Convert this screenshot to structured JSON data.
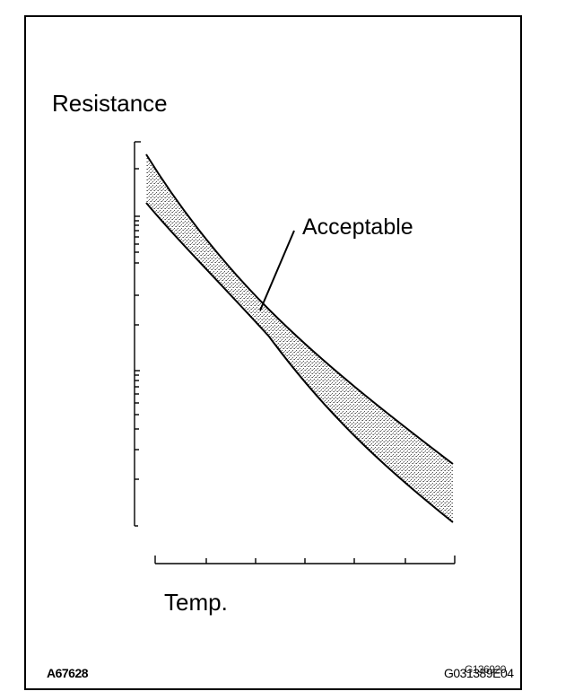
{
  "labels": {
    "y_axis": "Resistance",
    "x_axis": "Temp.",
    "band": "Acceptable"
  },
  "codes": {
    "left": "A67628",
    "right": "G031389E04",
    "right_overlay": "G136920"
  },
  "colors": {
    "line": "#000000",
    "band_fill": "#cfcfcf"
  }
}
